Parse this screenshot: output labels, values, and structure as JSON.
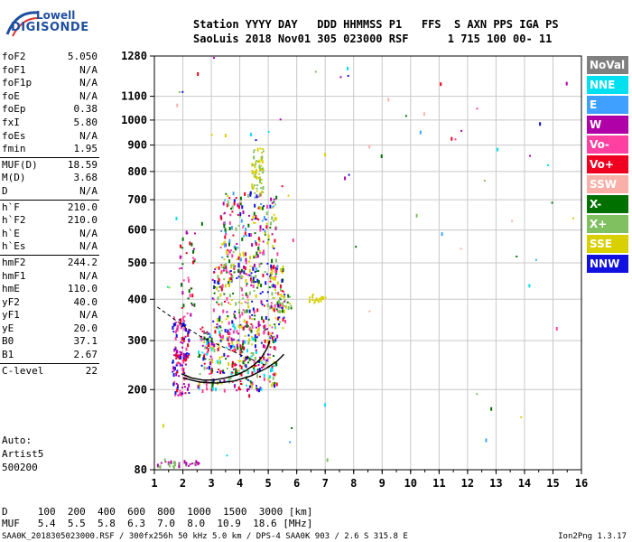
{
  "logo": {
    "line1": "Lowell",
    "line2": "DIGISONDE"
  },
  "header": {
    "labels": "Station YYYY DAY   DDD HHMMSS P1   FFS  S AXN PPS IGA PS",
    "values": "SaoLuis 2018 Nov01 305 023000 RSF      1 715 100 00- 11"
  },
  "params": [
    {
      "name": "foF2",
      "value": "5.050"
    },
    {
      "name": "foF1",
      "value": "N/A"
    },
    {
      "name": "foF1p",
      "value": "N/A"
    },
    {
      "name": "foE",
      "value": "N/A"
    },
    {
      "name": "foEp",
      "value": "0.38"
    },
    {
      "name": "fxI",
      "value": "5.80"
    },
    {
      "name": "foEs",
      "value": "N/A"
    },
    {
      "name": "fmin",
      "value": "1.95"
    },
    {
      "name": "MUF(D)",
      "value": "18.59"
    },
    {
      "name": "M(D)",
      "value": "3.68"
    },
    {
      "name": "D",
      "value": "N/A"
    },
    {
      "name": "h`F",
      "value": "210.0"
    },
    {
      "name": "h`F2",
      "value": "210.0"
    },
    {
      "name": "h`E",
      "value": "N/A"
    },
    {
      "name": "h`Es",
      "value": "N/A"
    },
    {
      "name": "hmF2",
      "value": "244.2"
    },
    {
      "name": "hmF1",
      "value": "N/A"
    },
    {
      "name": "hmE",
      "value": "110.0"
    },
    {
      "name": "yF2",
      "value": "40.0"
    },
    {
      "name": "yF1",
      "value": "N/A"
    },
    {
      "name": "yE",
      "value": "20.0"
    },
    {
      "name": "B0",
      "value": "37.1"
    },
    {
      "name": "B1",
      "value": "2.67"
    },
    {
      "name": "C-level",
      "value": "22"
    }
  ],
  "auto": {
    "line1": "Auto:",
    "line2": "Artist5",
    "line3": "500200"
  },
  "legend": [
    {
      "label": "NoVal",
      "color": "#808080"
    },
    {
      "label": "NNE",
      "color": "#00e0f0"
    },
    {
      "label": "E",
      "color": "#3fa0ff"
    },
    {
      "label": "W",
      "color": "#b000a8"
    },
    {
      "label": "Vo-",
      "color": "#ff40a0"
    },
    {
      "label": "Vo+",
      "color": "#f00020"
    },
    {
      "label": "SSW",
      "color": "#f8b0a8"
    },
    {
      "label": "X-",
      "color": "#007000"
    },
    {
      "label": "X+",
      "color": "#80c060"
    },
    {
      "label": "SSE",
      "color": "#d8d000"
    },
    {
      "label": "NNW",
      "color": "#1010e0"
    }
  ],
  "chart_data": {
    "type": "scatter",
    "xlim": [
      1,
      16
    ],
    "ylim": [
      80,
      1280
    ],
    "x_ticks": [
      "1",
      "2",
      "3",
      "4",
      "5",
      "6",
      "7",
      "8",
      "9",
      "10",
      "11",
      "12",
      "13",
      "14",
      "15",
      "16"
    ],
    "y_ticks": [
      {
        "value": 80,
        "label": "80"
      },
      {
        "value": 200,
        "label": "200"
      },
      {
        "value": 300,
        "label": "300"
      },
      {
        "value": 400,
        "label": "400"
      },
      {
        "value": 500,
        "label": "500"
      },
      {
        "value": 600,
        "label": "600"
      },
      {
        "value": 700,
        "label": "700"
      },
      {
        "value": 800,
        "label": "800"
      },
      {
        "value": 900,
        "label": "900"
      },
      {
        "value": 1000,
        "label": "1000"
      },
      {
        "value": 1100,
        "label": "1100"
      },
      {
        "value": 1280,
        "label": "1280"
      }
    ],
    "y_scale": "sqrt",
    "grid": true,
    "legend": "right",
    "trace_h": [
      {
        "x": 1.95,
        "y": 230
      },
      {
        "x": 2.3,
        "y": 222
      },
      {
        "x": 2.7,
        "y": 218
      },
      {
        "x": 3.1,
        "y": 218
      },
      {
        "x": 3.5,
        "y": 222
      },
      {
        "x": 3.9,
        "y": 228
      },
      {
        "x": 4.2,
        "y": 236
      },
      {
        "x": 4.5,
        "y": 248
      },
      {
        "x": 4.75,
        "y": 262
      },
      {
        "x": 4.95,
        "y": 282
      },
      {
        "x": 5.05,
        "y": 300
      }
    ],
    "trace_x": [
      {
        "x": 2.0,
        "y": 222
      },
      {
        "x": 2.6,
        "y": 214
      },
      {
        "x": 3.2,
        "y": 212
      },
      {
        "x": 3.8,
        "y": 216
      },
      {
        "x": 4.4,
        "y": 226
      },
      {
        "x": 4.9,
        "y": 240
      },
      {
        "x": 5.3,
        "y": 255
      },
      {
        "x": 5.55,
        "y": 270
      }
    ],
    "profile": [
      {
        "x": 1.1,
        "y": 380
      },
      {
        "x": 1.5,
        "y": 360
      },
      {
        "x": 2.0,
        "y": 335
      },
      {
        "x": 2.6,
        "y": 310
      },
      {
        "x": 3.2,
        "y": 292
      },
      {
        "x": 3.8,
        "y": 275
      },
      {
        "x": 4.3,
        "y": 262
      },
      {
        "x": 4.7,
        "y": 252
      },
      {
        "x": 5.05,
        "y": 244
      }
    ],
    "echo_regions": [
      {
        "x0": 1.6,
        "x1": 2.2,
        "y0": 190,
        "y1": 360,
        "n": 130,
        "colors": [
          "#f00020",
          "#1010e0",
          "#b000a8",
          "#ff40a0"
        ]
      },
      {
        "x0": 1.8,
        "x1": 2.4,
        "y0": 360,
        "y1": 600,
        "n": 40,
        "colors": [
          "#f00020",
          "#ff40a0",
          "#007000",
          "#b000a8"
        ]
      },
      {
        "x0": 2.5,
        "x1": 5.3,
        "y0": 200,
        "y1": 340,
        "n": 380,
        "colors": [
          "#f00020",
          "#ff40a0",
          "#007000",
          "#80c060",
          "#d8d000",
          "#b000a8",
          "#1010e0",
          "#00e0f0"
        ]
      },
      {
        "x0": 3.0,
        "x1": 5.6,
        "y0": 330,
        "y1": 500,
        "n": 260,
        "colors": [
          "#f00020",
          "#ff40a0",
          "#007000",
          "#80c060",
          "#d8d000",
          "#b000a8",
          "#1010e0"
        ]
      },
      {
        "x0": 3.3,
        "x1": 5.3,
        "y0": 480,
        "y1": 730,
        "n": 200,
        "colors": [
          "#f00020",
          "#ff40a0",
          "#007000",
          "#80c060",
          "#d8d000",
          "#b000a8",
          "#1010e0",
          "#3fa0ff"
        ]
      },
      {
        "x0": 4.4,
        "x1": 4.8,
        "y0": 720,
        "y1": 890,
        "n": 60,
        "colors": [
          "#d8d000",
          "#80c060"
        ]
      },
      {
        "x0": 5.3,
        "x1": 5.8,
        "y0": 370,
        "y1": 420,
        "n": 25,
        "colors": [
          "#d8d000",
          "#80c060",
          "#007000"
        ]
      },
      {
        "x0": 6.4,
        "x1": 7.0,
        "y0": 395,
        "y1": 415,
        "n": 14,
        "colors": [
          "#d8d000"
        ]
      },
      {
        "x0": 1.0,
        "x1": 2.6,
        "y0": 84,
        "y1": 92,
        "n": 30,
        "colors": [
          "#b000a8",
          "#80c060"
        ]
      },
      {
        "x0": 1.0,
        "x1": 16.0,
        "y0": 90,
        "y1": 1280,
        "n": 70,
        "colors": [
          "#b000a8",
          "#f00020",
          "#007000",
          "#1010e0",
          "#3fa0ff",
          "#f8b0a8",
          "#ff40a0",
          "#d8d000",
          "#00e0f0",
          "#80c060"
        ]
      }
    ]
  },
  "muf_table": {
    "d_row": "D     100  200  400  600  800  1000  1500  3000 [km]",
    "muf_row": "MUF   5.4  5.5  5.8  6.3  7.0  8.0  10.9  18.6 [MHz]"
  },
  "footer": {
    "text": "SAA0K_2018305023000.RSF / 300fx256h 50 kHz 5.0 km / DPS-4 SAA0K 903 / 2.6 S 315.8 E",
    "version": "Ion2Png 1.3.17"
  }
}
